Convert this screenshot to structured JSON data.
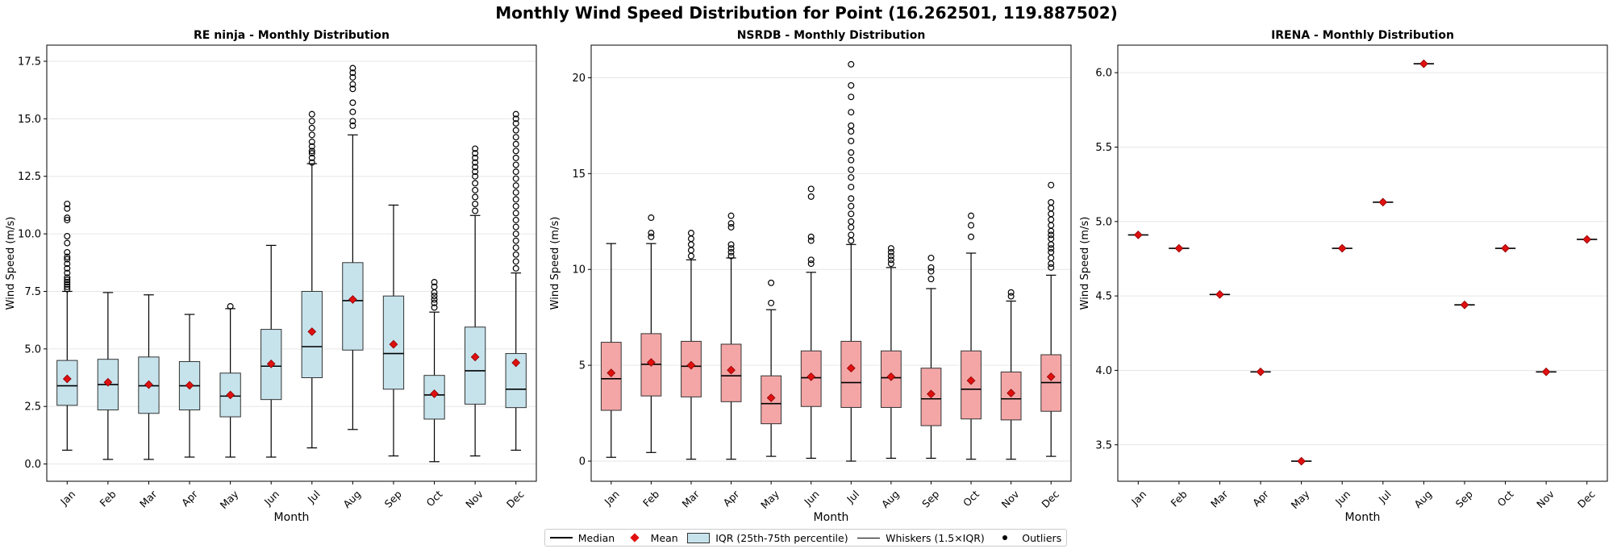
{
  "figure": {
    "title": "Monthly Wind Speed Distribution for Point (16.262501, 119.887502)"
  },
  "legend": {
    "median": "Median",
    "mean": "Mean",
    "iqr": "IQR (25th-75th percentile)",
    "whiskers": "Whiskers (1.5×IQR)",
    "outliers": "Outliers"
  },
  "colors": {
    "re_ninja_box": "#c6e3ec",
    "nsrdb_box": "#f4a6a6",
    "mean_marker": "#e01010",
    "median": "#000000"
  },
  "chart_data": [
    {
      "type": "box",
      "title": "RE ninja - Monthly Distribution",
      "xlabel": "Month",
      "ylabel": "Wind Speed (m/s)",
      "ylim": [
        -0.75,
        18.2
      ],
      "yticks": [
        0.0,
        2.5,
        5.0,
        7.5,
        10.0,
        12.5,
        15.0,
        17.5
      ],
      "ytick_labels": [
        "0.0",
        "2.5",
        "5.0",
        "7.5",
        "10.0",
        "12.5",
        "15.0",
        "17.5"
      ],
      "box_color": "#c6e3ec",
      "grid": "horizontal",
      "categories": [
        "Jan",
        "Feb",
        "Mar",
        "Apr",
        "May",
        "Jun",
        "Jul",
        "Aug",
        "Sep",
        "Oct",
        "Nov",
        "Dec"
      ],
      "boxes": [
        {
          "whislo": 0.6,
          "q1": 2.55,
          "med": 3.4,
          "q3": 4.5,
          "whishi": 7.5,
          "mean": 3.7,
          "fliers": [
            7.6,
            7.7,
            7.8,
            7.9,
            8.0,
            8.1,
            8.3,
            8.5,
            8.7,
            8.9,
            9.0,
            9.2,
            9.6,
            9.9,
            10.6,
            10.7,
            11.1,
            11.3
          ]
        },
        {
          "whislo": 0.2,
          "q1": 2.35,
          "med": 3.45,
          "q3": 4.55,
          "whishi": 7.45,
          "mean": 3.55,
          "fliers": []
        },
        {
          "whislo": 0.2,
          "q1": 2.2,
          "med": 3.4,
          "q3": 4.65,
          "whishi": 7.35,
          "mean": 3.45,
          "fliers": []
        },
        {
          "whislo": 0.3,
          "q1": 2.35,
          "med": 3.4,
          "q3": 4.45,
          "whishi": 6.5,
          "mean": 3.42,
          "fliers": []
        },
        {
          "whislo": 0.3,
          "q1": 2.05,
          "med": 2.95,
          "q3": 3.95,
          "whishi": 6.75,
          "mean": 3.0,
          "fliers": [
            6.85
          ]
        },
        {
          "whislo": 0.3,
          "q1": 2.8,
          "med": 4.25,
          "q3": 5.85,
          "whishi": 9.5,
          "mean": 4.35,
          "fliers": []
        },
        {
          "whislo": 0.7,
          "q1": 3.75,
          "med": 5.1,
          "q3": 7.5,
          "whishi": 13.05,
          "mean": 5.75,
          "fliers": [
            13.1,
            13.3,
            13.5,
            13.6,
            13.8,
            14.0,
            14.3,
            14.6,
            14.9,
            15.2
          ]
        },
        {
          "whislo": 1.5,
          "q1": 4.95,
          "med": 7.1,
          "q3": 8.75,
          "whishi": 14.3,
          "mean": 7.15,
          "fliers": [
            14.7,
            14.9,
            15.3,
            15.7,
            16.3,
            16.5,
            16.8,
            17.0,
            17.2
          ]
        },
        {
          "whislo": 0.35,
          "q1": 3.25,
          "med": 4.8,
          "q3": 7.3,
          "whishi": 11.25,
          "mean": 5.2,
          "fliers": []
        },
        {
          "whislo": 0.1,
          "q1": 1.95,
          "med": 3.0,
          "q3": 3.85,
          "whishi": 6.6,
          "mean": 3.05,
          "fliers": [
            6.8,
            7.0,
            7.15,
            7.3,
            7.45,
            7.7,
            7.9
          ]
        },
        {
          "whislo": 0.35,
          "q1": 2.6,
          "med": 4.05,
          "q3": 5.95,
          "whishi": 10.8,
          "mean": 4.65,
          "fliers": [
            11.0,
            11.3,
            11.6,
            11.9,
            12.2,
            12.5,
            12.7,
            12.9,
            13.1,
            13.3,
            13.5,
            13.7
          ]
        },
        {
          "whislo": 0.6,
          "q1": 2.45,
          "med": 3.25,
          "q3": 4.8,
          "whishi": 8.3,
          "mean": 4.4,
          "fliers": [
            8.5,
            8.8,
            9.1,
            9.4,
            9.7,
            10.0,
            10.3,
            10.6,
            10.9,
            11.2,
            11.5,
            11.8,
            12.1,
            12.4,
            12.7,
            13.0,
            13.3,
            13.6,
            13.9,
            14.2,
            14.5,
            14.8,
            15.0,
            15.2
          ]
        }
      ]
    },
    {
      "type": "box",
      "title": "NSRDB - Monthly Distribution",
      "xlabel": "Month",
      "ylabel": "Wind Speed (m/s)",
      "ylim": [
        -1.05,
        21.7
      ],
      "yticks": [
        0,
        5,
        10,
        15,
        20
      ],
      "ytick_labels": [
        "0",
        "5",
        "10",
        "15",
        "20"
      ],
      "box_color": "#f4a6a6",
      "grid": "horizontal",
      "categories": [
        "Jan",
        "Feb",
        "Mar",
        "Apr",
        "May",
        "Jun",
        "Jul",
        "Aug",
        "Sep",
        "Oct",
        "Nov",
        "Dec"
      ],
      "boxes": [
        {
          "whislo": 0.2,
          "q1": 2.65,
          "med": 4.3,
          "q3": 6.2,
          "whishi": 11.35,
          "mean": 4.6,
          "fliers": []
        },
        {
          "whislo": 0.45,
          "q1": 3.4,
          "med": 5.05,
          "q3": 6.65,
          "whishi": 11.35,
          "mean": 5.15,
          "fliers": [
            11.7,
            11.9,
            12.7
          ]
        },
        {
          "whislo": 0.1,
          "q1": 3.35,
          "med": 4.95,
          "q3": 6.25,
          "whishi": 10.5,
          "mean": 5.0,
          "fliers": [
            10.7,
            11.0,
            11.3,
            11.6,
            11.9
          ]
        },
        {
          "whislo": 0.1,
          "q1": 3.1,
          "med": 4.45,
          "q3": 6.1,
          "whishi": 10.6,
          "mean": 4.75,
          "fliers": [
            10.7,
            10.9,
            11.1,
            11.3,
            12.2,
            12.4,
            12.8
          ]
        },
        {
          "whislo": 0.25,
          "q1": 1.95,
          "med": 3.0,
          "q3": 4.45,
          "whishi": 7.9,
          "mean": 3.3,
          "fliers": [
            8.25,
            9.3
          ]
        },
        {
          "whislo": 0.15,
          "q1": 2.85,
          "med": 4.35,
          "q3": 5.75,
          "whishi": 9.85,
          "mean": 4.4,
          "fliers": [
            10.3,
            10.5,
            11.5,
            11.7,
            13.8,
            14.2
          ]
        },
        {
          "whislo": 0.0,
          "q1": 2.8,
          "med": 4.1,
          "q3": 6.25,
          "whishi": 11.3,
          "mean": 4.85,
          "fliers": [
            11.5,
            11.8,
            12.2,
            12.5,
            12.9,
            13.3,
            13.7,
            14.3,
            14.8,
            15.2,
            15.7,
            16.1,
            16.7,
            17.2,
            17.5,
            18.2,
            19.0,
            19.6,
            20.7
          ]
        },
        {
          "whislo": 0.15,
          "q1": 2.8,
          "med": 4.35,
          "q3": 5.75,
          "whishi": 10.1,
          "mean": 4.4,
          "fliers": [
            10.3,
            10.5,
            10.7,
            10.9,
            11.1
          ]
        },
        {
          "whislo": 0.15,
          "q1": 1.85,
          "med": 3.25,
          "q3": 4.85,
          "whishi": 9.0,
          "mean": 3.5,
          "fliers": [
            9.5,
            9.9,
            10.1,
            10.6
          ]
        },
        {
          "whislo": 0.1,
          "q1": 2.2,
          "med": 3.75,
          "q3": 5.75,
          "whishi": 10.85,
          "mean": 4.2,
          "fliers": [
            11.7,
            12.3,
            12.8
          ]
        },
        {
          "whislo": 0.1,
          "q1": 2.15,
          "med": 3.25,
          "q3": 4.65,
          "whishi": 8.35,
          "mean": 3.55,
          "fliers": [
            8.6,
            8.8
          ]
        },
        {
          "whislo": 0.25,
          "q1": 2.6,
          "med": 4.1,
          "q3": 5.55,
          "whishi": 9.7,
          "mean": 4.4,
          "fliers": [
            10.1,
            10.3,
            10.6,
            10.9,
            11.1,
            11.3,
            11.6,
            11.8,
            12.0,
            12.3,
            12.6,
            12.9,
            13.2,
            13.5,
            14.4
          ]
        }
      ]
    },
    {
      "type": "box",
      "title": "IRENA - Monthly Distribution",
      "xlabel": "Month",
      "ylabel": "Wind Speed (m/s)",
      "ylim": [
        3.255,
        6.185
      ],
      "yticks": [
        3.5,
        4.0,
        4.5,
        5.0,
        5.5,
        6.0
      ],
      "ytick_labels": [
        "3.5",
        "4.0",
        "4.5",
        "5.0",
        "5.5",
        "6.0"
      ],
      "box_color": "#c6e3ec",
      "grid": "horizontal",
      "categories": [
        "Jan",
        "Feb",
        "Mar",
        "Apr",
        "May",
        "Jun",
        "Jul",
        "Aug",
        "Sep",
        "Oct",
        "Nov",
        "Dec"
      ],
      "boxes": [
        {
          "whislo": 4.91,
          "q1": 4.91,
          "med": 4.91,
          "q3": 4.91,
          "whishi": 4.91,
          "mean": 4.91,
          "fliers": []
        },
        {
          "whislo": 4.82,
          "q1": 4.82,
          "med": 4.82,
          "q3": 4.82,
          "whishi": 4.82,
          "mean": 4.82,
          "fliers": []
        },
        {
          "whislo": 4.51,
          "q1": 4.51,
          "med": 4.51,
          "q3": 4.51,
          "whishi": 4.51,
          "mean": 4.51,
          "fliers": []
        },
        {
          "whislo": 3.99,
          "q1": 3.99,
          "med": 3.99,
          "q3": 3.99,
          "whishi": 3.99,
          "mean": 3.99,
          "fliers": []
        },
        {
          "whislo": 3.39,
          "q1": 3.39,
          "med": 3.39,
          "q3": 3.39,
          "whishi": 3.39,
          "mean": 3.39,
          "fliers": []
        },
        {
          "whislo": 4.82,
          "q1": 4.82,
          "med": 4.82,
          "q3": 4.82,
          "whishi": 4.82,
          "mean": 4.82,
          "fliers": []
        },
        {
          "whislo": 5.13,
          "q1": 5.13,
          "med": 5.13,
          "q3": 5.13,
          "whishi": 5.13,
          "mean": 5.13,
          "fliers": []
        },
        {
          "whislo": 6.06,
          "q1": 6.06,
          "med": 6.06,
          "q3": 6.06,
          "whishi": 6.06,
          "mean": 6.06,
          "fliers": []
        },
        {
          "whislo": 4.44,
          "q1": 4.44,
          "med": 4.44,
          "q3": 4.44,
          "whishi": 4.44,
          "mean": 4.44,
          "fliers": []
        },
        {
          "whislo": 4.82,
          "q1": 4.82,
          "med": 4.82,
          "q3": 4.82,
          "whishi": 4.82,
          "mean": 4.82,
          "fliers": []
        },
        {
          "whislo": 3.99,
          "q1": 3.99,
          "med": 3.99,
          "q3": 3.99,
          "whishi": 3.99,
          "mean": 3.99,
          "fliers": []
        },
        {
          "whislo": 4.88,
          "q1": 4.88,
          "med": 4.88,
          "q3": 4.88,
          "whishi": 4.88,
          "mean": 4.88,
          "fliers": []
        }
      ]
    }
  ]
}
